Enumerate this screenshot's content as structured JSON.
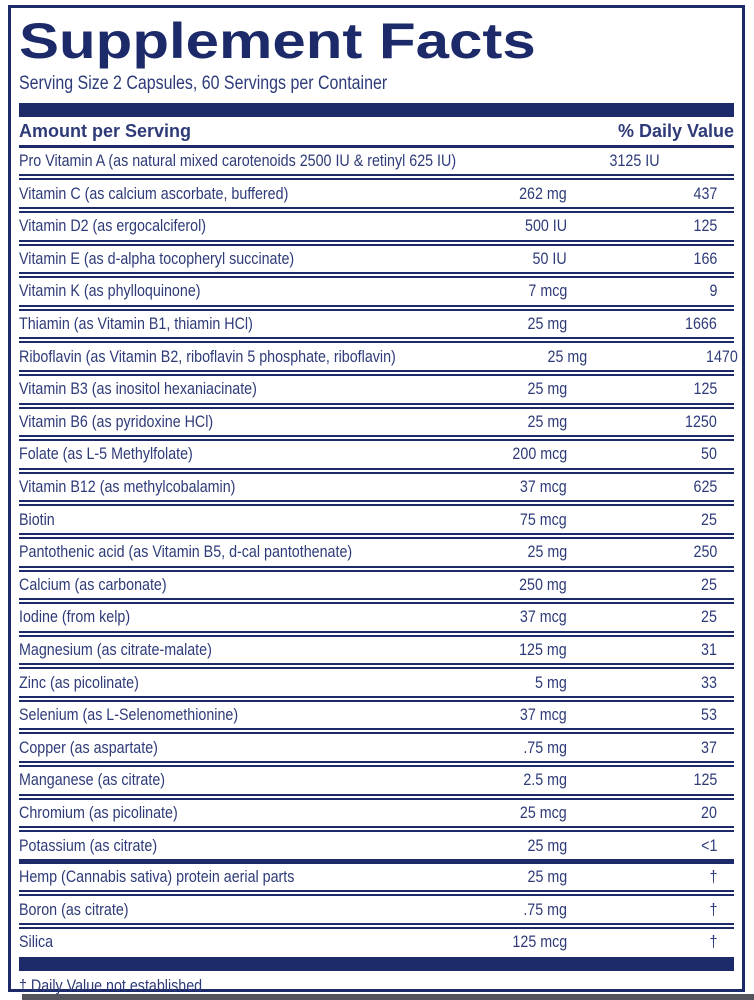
{
  "label": {
    "title": "Supplement Facts",
    "serving_info": "Serving Size 2 Capsules, 60 Servings per Container",
    "columns": {
      "amount_header": "Amount per Serving",
      "dv_header": "% Daily Value"
    },
    "rows": [
      {
        "name": "Pro Vitamin A (as natural mixed carotenoids 2500 IU & retinyl 625 IU)",
        "amount": "3125 IU",
        "dv": "†",
        "separator_after": "double"
      },
      {
        "name": "Vitamin C (as calcium ascorbate, buffered)",
        "amount": "262 mg",
        "dv": "437",
        "separator_after": "double"
      },
      {
        "name": "Vitamin D2 (as ergocalciferol)",
        "amount": "500 IU",
        "dv": "125",
        "separator_after": "double"
      },
      {
        "name": "Vitamin E (as d-alpha tocopheryl succinate)",
        "amount": "50 IU",
        "dv": "166",
        "separator_after": "double"
      },
      {
        "name": "Vitamin K (as phylloquinone)",
        "amount": "7 mcg",
        "dv": "9",
        "separator_after": "double"
      },
      {
        "name": "Thiamin (as Vitamin B1, thiamin HCl)",
        "amount": "25 mg",
        "dv": "1666",
        "separator_after": "double"
      },
      {
        "name": "Riboflavin (as Vitamin B2, riboflavin 5 phosphate, riboflavin)",
        "amount": "25 mg",
        "dv": "1470",
        "separator_after": "double"
      },
      {
        "name": "Vitamin B3 (as inositol hexaniacinate)",
        "amount": "25 mg",
        "dv": "125",
        "separator_after": "double"
      },
      {
        "name": "Vitamin B6 (as pyridoxine HCl)",
        "amount": "25 mg",
        "dv": "1250",
        "separator_after": "double"
      },
      {
        "name": "Folate (as L-5 Methylfolate)",
        "amount": "200 mcg",
        "dv": "50",
        "separator_after": "double"
      },
      {
        "name": "Vitamin B12 (as methylcobalamin)",
        "amount": "37 mcg",
        "dv": "625",
        "separator_after": "double"
      },
      {
        "name": "Biotin",
        "amount": "75 mcg",
        "dv": "25",
        "separator_after": "double"
      },
      {
        "name": "Pantothenic acid (as Vitamin B5, d-cal pantothenate)",
        "amount": "25 mg",
        "dv": "250",
        "separator_after": "double"
      },
      {
        "name": "Calcium (as carbonate)",
        "amount": "250 mg",
        "dv": "25",
        "separator_after": "double"
      },
      {
        "name": "Iodine (from kelp)",
        "amount": "37 mcg",
        "dv": "25",
        "separator_after": "double"
      },
      {
        "name": "Magnesium (as citrate-malate)",
        "amount": "125 mg",
        "dv": "31",
        "separator_after": "double"
      },
      {
        "name": "Zinc (as picolinate)",
        "amount": "5 mg",
        "dv": "33",
        "separator_after": "double"
      },
      {
        "name": "Selenium (as L-Selenomethionine)",
        "amount": "37 mcg",
        "dv": "53",
        "separator_after": "double"
      },
      {
        "name": "Copper (as aspartate)",
        "amount": ".75 mg",
        "dv": "37",
        "separator_after": "double"
      },
      {
        "name": "Manganese (as citrate)",
        "amount": "2.5 mg",
        "dv": "125",
        "separator_after": "double"
      },
      {
        "name": "Chromium (as picolinate)",
        "amount": "25 mcg",
        "dv": "20",
        "separator_after": "double"
      },
      {
        "name": "Potassium (as citrate)",
        "amount": "25 mg",
        "dv": "<1",
        "separator_after": "thick"
      },
      {
        "name": "Hemp (Cannabis sativa) protein aerial parts",
        "amount": "25 mg",
        "dv": "†",
        "separator_after": "double"
      },
      {
        "name": "Boron (as citrate)",
        "amount": ".75 mg",
        "dv": "†",
        "separator_after": "double"
      },
      {
        "name": "Silica",
        "amount": "125 mcg",
        "dv": "†",
        "separator_after": "bar"
      }
    ],
    "footnote": "† Daily Value not established",
    "colors": {
      "navy": "#1c2a6a",
      "text": "#2e3b78",
      "bottom_gray": "#54545c",
      "background": "#ffffff"
    }
  }
}
